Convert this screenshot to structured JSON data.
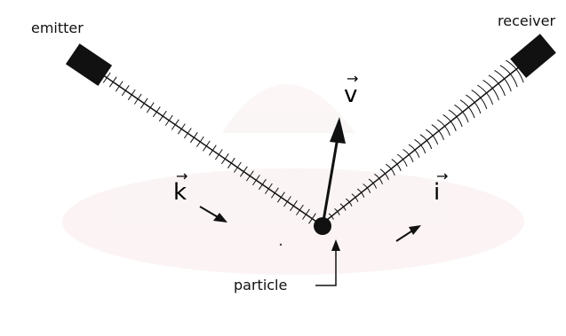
{
  "labels": {
    "emitter": "emitter",
    "receiver": "receiver",
    "particle": "particle",
    "v": "v",
    "k": "k",
    "i": "i",
    "vector_arrow": "→"
  },
  "colors": {
    "ink": "#111111",
    "watermark": "#f2d9d9"
  },
  "icons": {
    "emitter": "emitter-block-icon",
    "receiver": "receiver-block-icon",
    "particle": "particle-dot-icon"
  }
}
